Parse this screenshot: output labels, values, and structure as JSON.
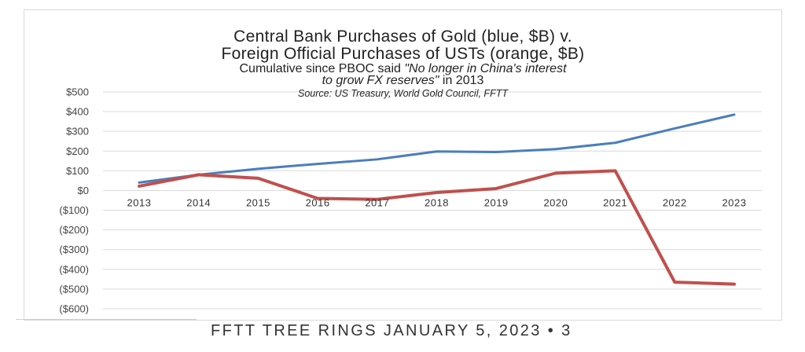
{
  "header": {
    "title_line1": "Central Bank Purchases of Gold (blue, $B) v.",
    "title_line2": "Foreign Official Purchases of USTs (orange, $B)",
    "subtitle_line1_plain": "Cumulative since PBOC said ",
    "subtitle_line1_italic": "\"No longer in China's interest",
    "subtitle_line2_italic": "to grow FX reserves\"",
    "subtitle_line2_plain": " in 2013",
    "source": "Source: US Treasury, World Gold Council, FFTT"
  },
  "footer": {
    "text": "FFTT TREE RINGS JANUARY 5, 2023 • 3"
  },
  "colors": {
    "gold_series": "#4a7ebb",
    "ust_series": "#c0504d",
    "grid": "#d9d9d9"
  },
  "chart_data": {
    "type": "line",
    "title": "Central Bank Purchases of Gold (blue, $B) v. Foreign Official Purchases of USTs (orange, $B)",
    "subtitle": "Cumulative since PBOC said \"No longer in China's interest to grow FX reserves\" in 2013",
    "categories": [
      "2013",
      "2014",
      "2015",
      "2016",
      "2017",
      "2018",
      "2019",
      "2020",
      "2021",
      "2022",
      "2023"
    ],
    "y_tick_labels": [
      "$500",
      "$400",
      "$300",
      "$200",
      "$100",
      "$0",
      "($100)",
      "($200)",
      "($300)",
      "($400)",
      "($500)",
      "($600)"
    ],
    "ylim": [
      -600,
      500
    ],
    "y_step": 100,
    "grid": true,
    "series": [
      {
        "color": "#4a7ebb",
        "values": [
          40,
          80,
          110,
          135,
          158,
          198,
          195,
          210,
          242,
          315,
          385
        ]
      },
      {
        "color": "#c0504d",
        "values": [
          22,
          80,
          62,
          -40,
          -45,
          -10,
          10,
          88,
          100,
          -465,
          -475
        ]
      }
    ]
  }
}
